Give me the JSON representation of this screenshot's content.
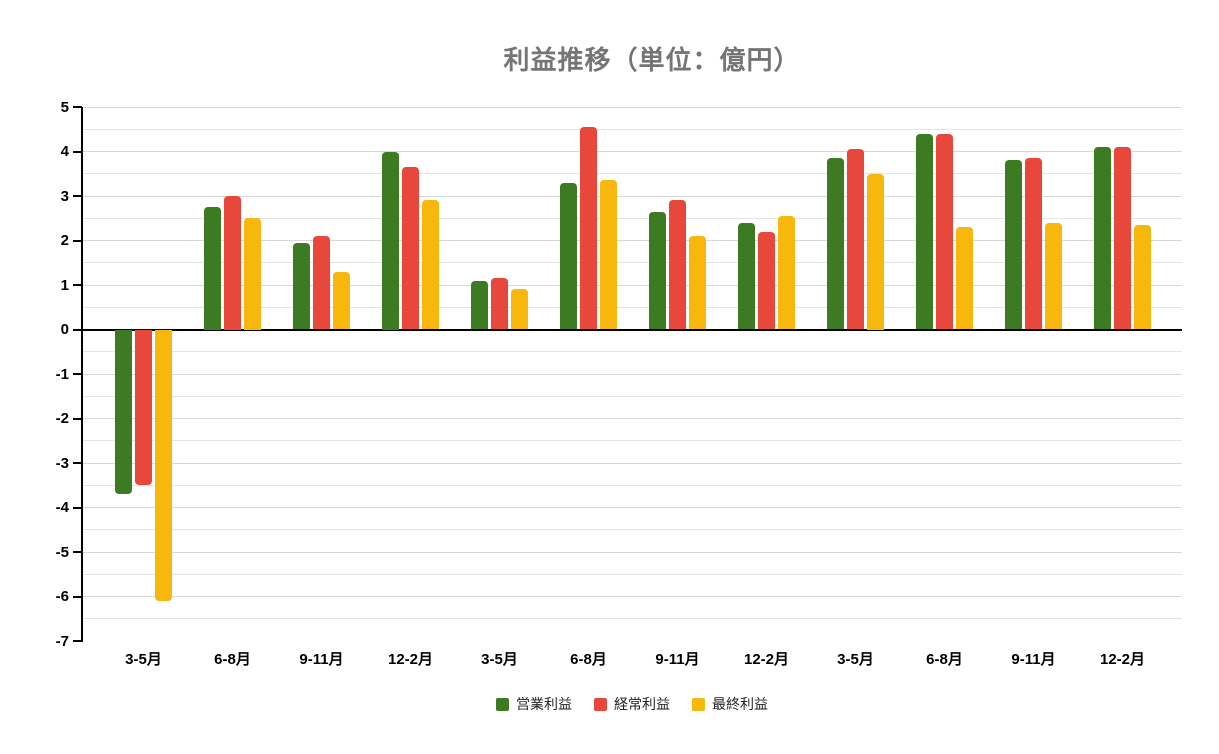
{
  "chart_data": {
    "type": "bar",
    "title": "利益推移（単位：億円）",
    "categories": [
      "3-5月",
      "6-8月",
      "9-11月",
      "12-2月",
      "3-5月",
      "6-8月",
      "9-11月",
      "12-2月",
      "3-5月",
      "6-8月",
      "9-11月",
      "12-2月"
    ],
    "series": [
      {
        "name": "営業利益",
        "color": "#3c7b21",
        "values": [
          -3.7,
          2.75,
          1.95,
          4.0,
          1.1,
          3.3,
          2.65,
          2.4,
          3.85,
          4.4,
          3.8,
          4.1
        ]
      },
      {
        "name": "経常利益",
        "color": "#e8473c",
        "values": [
          -3.5,
          3.0,
          2.1,
          3.65,
          1.15,
          4.55,
          2.9,
          2.2,
          4.05,
          4.4,
          3.85,
          4.1
        ]
      },
      {
        "name": "最終利益",
        "color": "#f8b70d",
        "values": [
          -6.1,
          2.5,
          1.3,
          2.9,
          0.9,
          3.35,
          2.1,
          2.55,
          3.5,
          2.3,
          2.4,
          2.35
        ]
      }
    ],
    "ylim": [
      -7,
      5
    ],
    "y_ticks": [
      5,
      4,
      3,
      2,
      1,
      0,
      -1,
      -2,
      -3,
      -4,
      -5,
      -6,
      -7
    ],
    "gridline_step": 0.5,
    "grid": true,
    "legend_position": "bottom",
    "colors": {
      "gridline_major": "#d9d9d9",
      "gridline_minor": "#e4e4e4",
      "axis": "#000000",
      "title": "#757575",
      "tick_label": "#000000",
      "background": "#ffffff"
    }
  }
}
